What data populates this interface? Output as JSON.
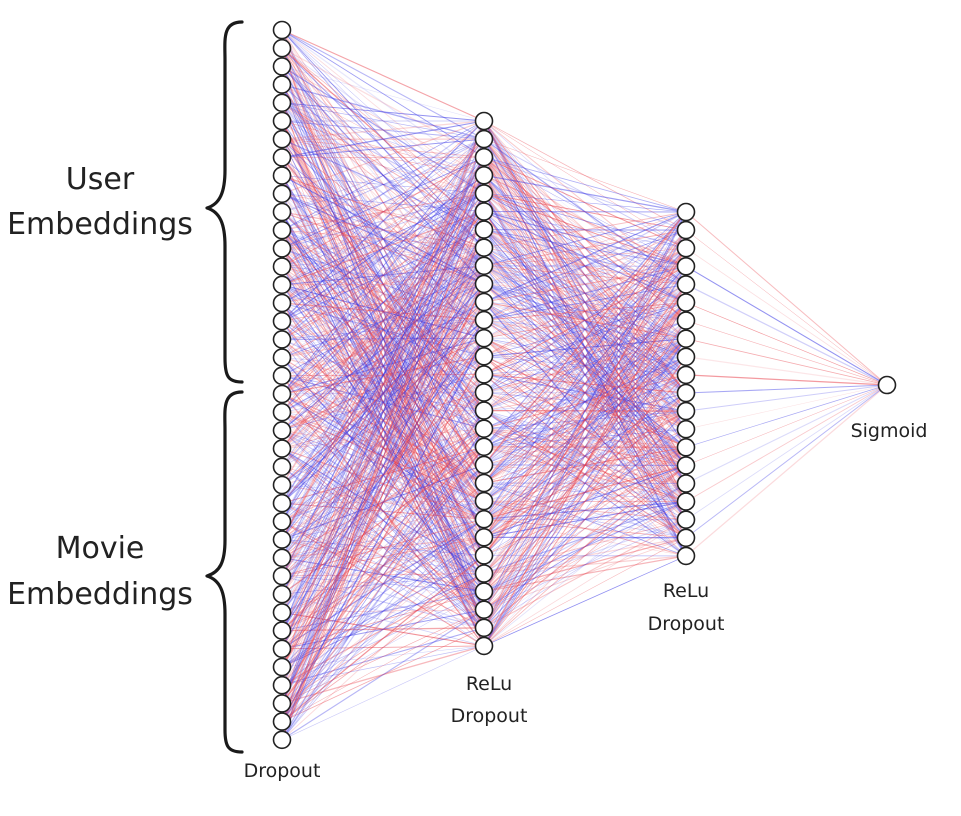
{
  "diagram": {
    "groups": [
      {
        "label_lines": [
          "User",
          "Embeddings"
        ]
      },
      {
        "label_lines": [
          "Movie",
          "Embeddings"
        ]
      }
    ],
    "layers": [
      {
        "label_lines": [
          "Dropout"
        ]
      },
      {
        "label_lines": [
          "ReLu",
          "Dropout"
        ]
      },
      {
        "label_lines": [
          "ReLu",
          "Dropout"
        ]
      },
      {
        "label_lines": [
          "Sigmoid"
        ]
      }
    ],
    "colors": {
      "positive_weight": "#e8414b",
      "negative_weight": "#3a38e6",
      "neuron_stroke": "#222222",
      "text": "#222222"
    }
  }
}
